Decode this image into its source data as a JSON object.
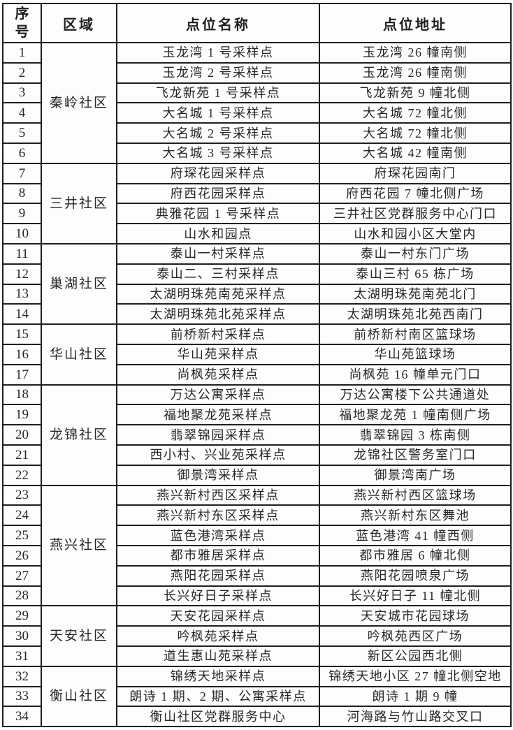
{
  "table": {
    "columns": [
      "序号",
      "区域",
      "点位名称",
      "点位地址"
    ],
    "regions": [
      {
        "name": "秦岭社区",
        "rows": [
          {
            "no": "1",
            "site": "玉龙湾 1 号采样点",
            "address": "玉龙湾 26 幢南侧"
          },
          {
            "no": "2",
            "site": "玉龙湾 2 号采样点",
            "address": "玉龙湾 26 幢南侧"
          },
          {
            "no": "3",
            "site": "飞龙新苑 1 号采样点",
            "address": "飞龙新苑 9 幢北侧"
          },
          {
            "no": "4",
            "site": "大名城 1 号采样点",
            "address": "大名城 72 幢北侧"
          },
          {
            "no": "5",
            "site": "大名城 2 号采样点",
            "address": "大名城 72 幢北侧"
          },
          {
            "no": "6",
            "site": "大名城 3 号采样点",
            "address": "大名城 42 幢南侧"
          }
        ]
      },
      {
        "name": "三井社区",
        "rows": [
          {
            "no": "7",
            "site": "府琛花园采样点",
            "address": "府琛花园南门"
          },
          {
            "no": "8",
            "site": "府西花园采样点",
            "address": "府西花园 7 幢北侧广场"
          },
          {
            "no": "9",
            "site": "典雅花园 1 号采样点",
            "address": "三井社区党群服务中心门口"
          },
          {
            "no": "10",
            "site": "山水和园点",
            "address": "山水和园小区大堂内"
          }
        ]
      },
      {
        "name": "巢湖社区",
        "rows": [
          {
            "no": "11",
            "site": "泰山一村采样点",
            "address": "泰山一村东门广场"
          },
          {
            "no": "12",
            "site": "泰山二、三村采样点",
            "address": "泰山三村 65 栋广场"
          },
          {
            "no": "13",
            "site": "太湖明珠苑南苑采样点",
            "address": "太湖明珠苑南苑北门"
          },
          {
            "no": "14",
            "site": "太湖明珠苑北苑采样点",
            "address": "太湖明珠苑北苑西南门"
          }
        ]
      },
      {
        "name": "华山社区",
        "rows": [
          {
            "no": "15",
            "site": "前桥新村采样点",
            "address": "前桥新村南区篮球场"
          },
          {
            "no": "16",
            "site": "华山苑采样点",
            "address": "华山苑篮球场"
          },
          {
            "no": "17",
            "site": "尚枫苑采样点",
            "address": "尚枫苑 16 幢单元门口"
          }
        ]
      },
      {
        "name": "龙锦社区",
        "rows": [
          {
            "no": "18",
            "site": "万达公寓采样点",
            "address": "万达公寓楼下公共通道处"
          },
          {
            "no": "19",
            "site": "福地聚龙苑采样点",
            "address": "福地聚龙苑 1 幢南侧广场"
          },
          {
            "no": "20",
            "site": "翡翠锦园采样点",
            "address": "翡翠锦园 3 栋南侧"
          },
          {
            "no": "21",
            "site": "西小村、兴业苑采样点",
            "address": "龙锦社区警务室门口"
          },
          {
            "no": "22",
            "site": "御景湾采样点",
            "address": "御景湾南广场"
          }
        ]
      },
      {
        "name": "燕兴社区",
        "rows": [
          {
            "no": "23",
            "site": "燕兴新村西区采样点",
            "address": "燕兴新村西区篮球场"
          },
          {
            "no": "24",
            "site": "燕兴新村东区采样点",
            "address": "燕兴新村东区舞池"
          },
          {
            "no": "25",
            "site": "蓝色港湾采样点",
            "address": "蓝色港湾 41 幢西侧"
          },
          {
            "no": "26",
            "site": "都市雅居采样点",
            "address": "都市雅居 6 幢北侧"
          },
          {
            "no": "27",
            "site": "燕阳花园采样点",
            "address": "燕阳花园喷泉广场"
          },
          {
            "no": "28",
            "site": "长兴好日子采样点",
            "address": "长兴好日子 11 幢北侧"
          }
        ]
      },
      {
        "name": "天安社区",
        "rows": [
          {
            "no": "29",
            "site": "天安花园采样点",
            "address": "天安城市花园球场"
          },
          {
            "no": "30",
            "site": "吟枫苑采样点",
            "address": "吟枫苑西区广场"
          },
          {
            "no": "31",
            "site": "道生惠山苑采样点",
            "address": "新区公园西北侧"
          }
        ]
      },
      {
        "name": "衡山社区",
        "rows": [
          {
            "no": "32",
            "site": "锦绣天地采样点",
            "address": "锦绣天地小区 27 幢北侧空地"
          },
          {
            "no": "33",
            "site": "朗诗 1 期、2 期、公寓采样点",
            "address": "朗诗 1 期 9 幢"
          },
          {
            "no": "34",
            "site": "衡山社区党群服务中心",
            "address": "河海路与竹山路交叉口"
          }
        ]
      }
    ]
  }
}
